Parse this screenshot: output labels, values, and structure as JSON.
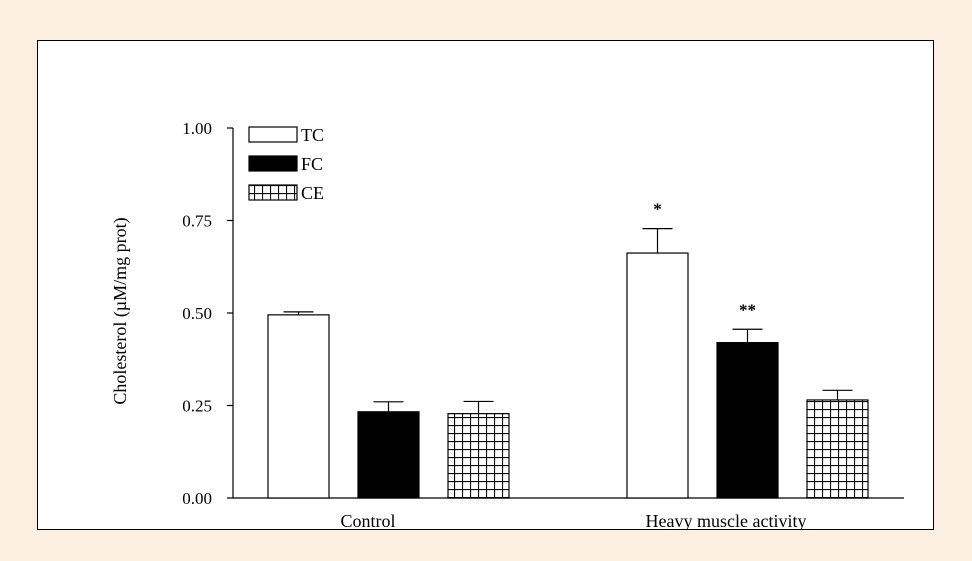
{
  "colors": {
    "page_background": "#fdefe1",
    "panel_background": "#ffffff",
    "ink": "#000000"
  },
  "chart_data": {
    "type": "bar",
    "title": "",
    "xlabel": "",
    "ylabel": "Cholesterol (µM/mg prot)",
    "ylim": [
      0,
      1.0
    ],
    "yticks": [
      0.0,
      0.25,
      0.5,
      0.75,
      1.0
    ],
    "ytick_labels": [
      "0.00",
      "0.25",
      "0.50",
      "0.75",
      "1.00"
    ],
    "grid": false,
    "legend_position": "top-left",
    "categories": [
      "Control",
      "Heavy muscle activity"
    ],
    "series": [
      {
        "name": "TC",
        "fill": "white",
        "values": [
          0.495,
          0.662
        ],
        "errors": [
          0.008,
          0.066
        ],
        "annotations": [
          "",
          "*"
        ]
      },
      {
        "name": "FC",
        "fill": "black",
        "values": [
          0.233,
          0.42
        ],
        "errors": [
          0.027,
          0.036
        ],
        "annotations": [
          "",
          "**"
        ]
      },
      {
        "name": "CE",
        "fill": "grid-hatch",
        "values": [
          0.228,
          0.265
        ],
        "errors": [
          0.033,
          0.026
        ],
        "annotations": [
          "",
          ""
        ]
      }
    ]
  }
}
